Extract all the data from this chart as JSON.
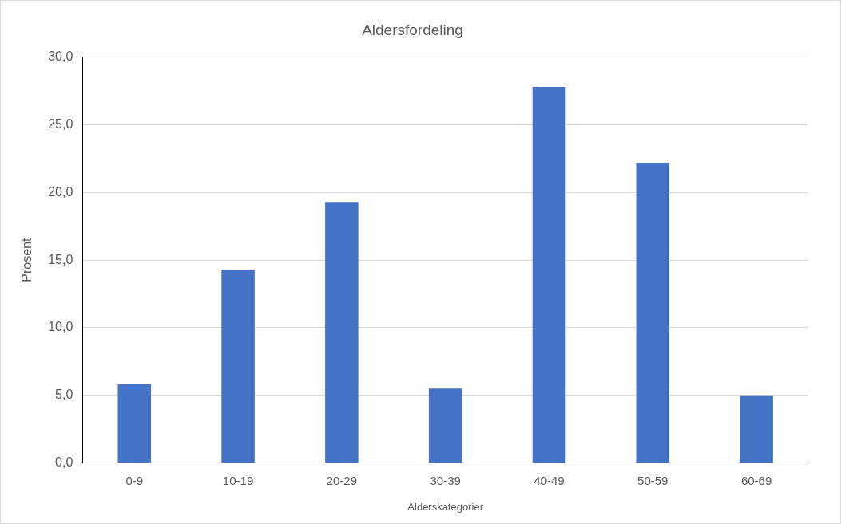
{
  "chart_data": {
    "type": "bar",
    "title": "Aldersfordeling",
    "xlabel": "Alderskategorier",
    "ylabel": "Prosent",
    "categories": [
      "0-9",
      "10-19",
      "20-29",
      "30-39",
      "40-49",
      "50-59",
      "60-69"
    ],
    "values": [
      5.8,
      14.3,
      19.3,
      5.5,
      27.8,
      22.2,
      5.0
    ],
    "color": "#4472c4",
    "ylim": [
      0,
      30
    ],
    "yticks": [
      {
        "value": 0,
        "label": "0,0"
      },
      {
        "value": 5,
        "label": "5,0"
      },
      {
        "value": 10,
        "label": "10,0"
      },
      {
        "value": 15,
        "label": "15,0"
      },
      {
        "value": 20,
        "label": "20,0"
      },
      {
        "value": 25,
        "label": "25,0"
      },
      {
        "value": 30,
        "label": "30,0"
      }
    ],
    "grid": "y"
  }
}
